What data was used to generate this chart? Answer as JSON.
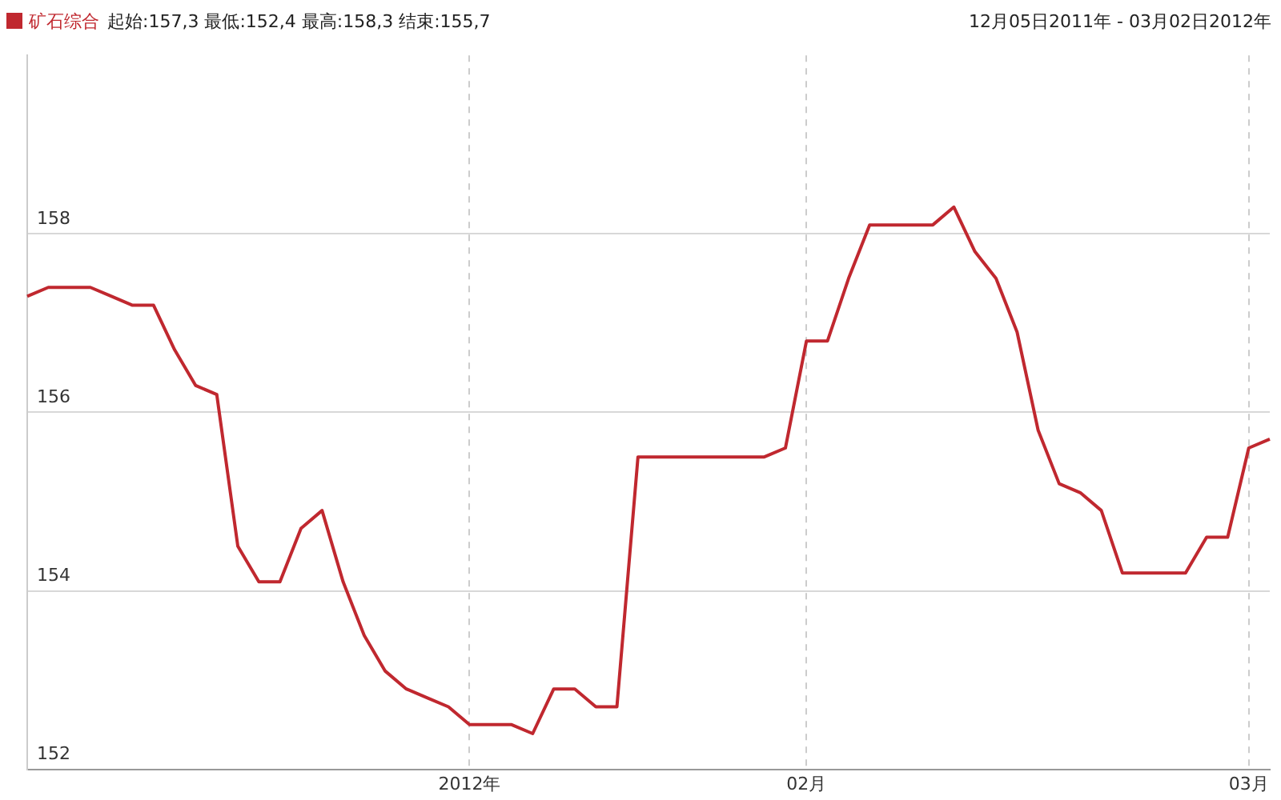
{
  "chart_data": {
    "type": "line",
    "categories": [
      null,
      null,
      null,
      null,
      null,
      null,
      null,
      null,
      null,
      null,
      null,
      null,
      null,
      null,
      null,
      null,
      null,
      null,
      null,
      null,
      null,
      "2012年",
      null,
      null,
      null,
      null,
      null,
      null,
      null,
      null,
      null,
      null,
      null,
      null,
      null,
      null,
      null,
      "02月",
      null,
      null,
      null,
      null,
      null,
      null,
      null,
      null,
      null,
      null,
      null,
      null,
      null,
      null,
      null,
      null,
      null,
      null,
      null,
      null,
      "03月",
      null
    ],
    "series": [
      {
        "name": "矿石综合",
        "color": "#c0282f",
        "values": [
          157.3,
          157.4,
          157.4,
          157.4,
          157.3,
          157.2,
          157.2,
          156.7,
          156.3,
          156.2,
          154.5,
          154.1,
          154.1,
          154.7,
          154.9,
          154.1,
          153.5,
          153.1,
          152.9,
          152.8,
          152.7,
          152.5,
          152.5,
          152.5,
          152.4,
          152.9,
          152.9,
          152.7,
          152.7,
          155.5,
          155.5,
          155.5,
          155.5,
          155.5,
          155.5,
          155.5,
          155.6,
          156.8,
          156.8,
          157.5,
          158.1,
          158.1,
          158.1,
          158.1,
          158.3,
          157.8,
          157.5,
          156.9,
          155.8,
          155.2,
          155.1,
          154.9,
          154.2,
          154.2,
          154.2,
          154.2,
          154.6,
          154.6,
          155.6,
          155.7
        ]
      }
    ],
    "ylim": [
      152,
      160
    ],
    "yticks": [
      152,
      154,
      156,
      158
    ],
    "grid": true,
    "legend": "top left",
    "marker": "none",
    "line_style": "solid",
    "annotations": [
      "起始:157,3 最低:152,4 最高:158,3 结束:155,7",
      "12月05日2011年 - 03月02日2012年"
    ]
  }
}
